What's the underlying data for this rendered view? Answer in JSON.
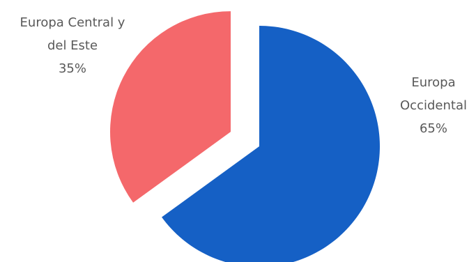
{
  "chart_data": {
    "type": "pie",
    "title": "",
    "slices": [
      {
        "label": [
          "Europa",
          "Occidental"
        ],
        "value": 65,
        "percent_label": "65%",
        "color": "#1560C5",
        "exploded": false
      },
      {
        "label": [
          "Europa Central y",
          "del Este"
        ],
        "value": 35,
        "percent_label": "35%",
        "color": "#F4686B",
        "exploded": true
      }
    ],
    "legend": "none",
    "data_labels": "category name and percentage, outside slices"
  }
}
